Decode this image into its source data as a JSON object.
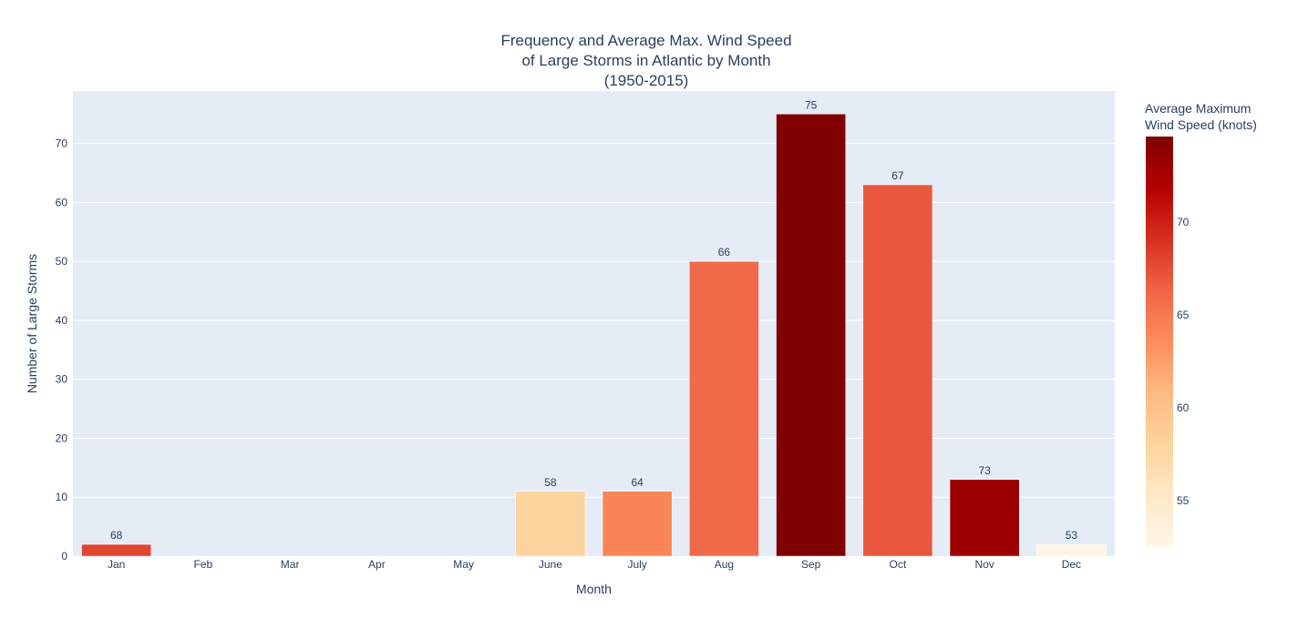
{
  "chart_data": {
    "type": "bar",
    "title_lines": [
      "Frequency and Average Max. Wind Speed",
      "of Large Storms in Atlantic by Month",
      "(1950-2015)"
    ],
    "xlabel": "Month",
    "ylabel": "Number of Large Storms",
    "categories": [
      "Jan",
      "Feb",
      "Mar",
      "Apr",
      "May",
      "June",
      "July",
      "Aug",
      "Sep",
      "Oct",
      "Nov",
      "Dec"
    ],
    "values": [
      2,
      0,
      0,
      0,
      0,
      11,
      11,
      50,
      75,
      63,
      13,
      2
    ],
    "bar_labels": [
      "68",
      "",
      "",
      "",
      "",
      "58",
      "64",
      "66",
      "75",
      "67",
      "73",
      "53"
    ],
    "avg_max_wind_speed": [
      68,
      null,
      null,
      null,
      null,
      58,
      64,
      66,
      75,
      67,
      73,
      53
    ],
    "ylim": [
      0,
      78.9
    ],
    "yticks": [
      0,
      10,
      20,
      30,
      40,
      50,
      60,
      70
    ],
    "grid": true,
    "plot_background": "#e5ecf6",
    "colorbar": {
      "title_lines": [
        "Average Maximum",
        " Wind Speed (knots)"
      ],
      "range": [
        52.5,
        74.6
      ],
      "ticks": [
        55,
        60,
        65,
        70
      ],
      "colorscale": [
        "#fff7ec",
        "#fee8c8",
        "#fdd49e",
        "#fdbb84",
        "#fc8d59",
        "#ef6548",
        "#d7301f",
        "#b30000",
        "#7f0000"
      ]
    }
  }
}
